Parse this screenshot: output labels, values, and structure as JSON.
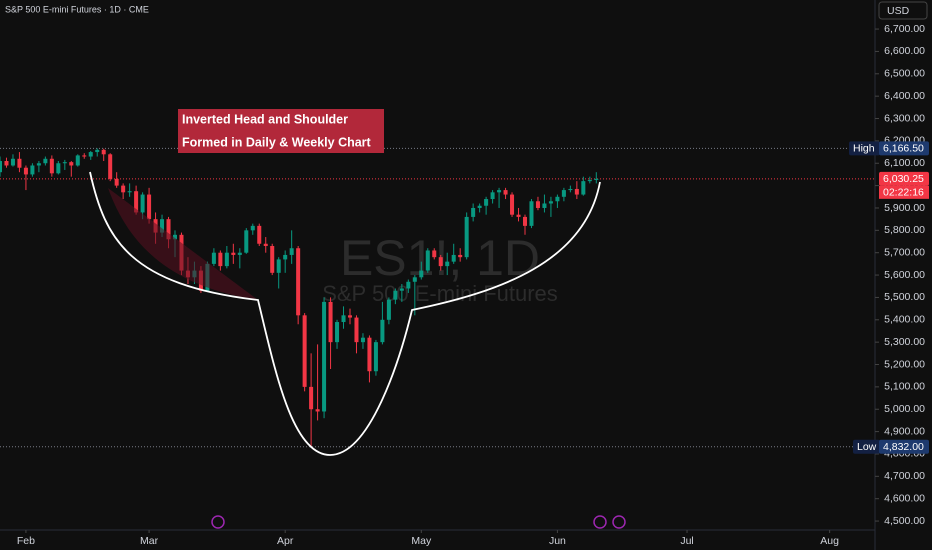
{
  "chart_data": {
    "type": "candlestick",
    "title": "S&P 500 E-mini Futures · 1D · CME",
    "watermark": "ES1!, 1D",
    "watermark_subtitle": "S&P 500 E-mini Futures",
    "currency": "USD",
    "annotation": [
      "Inverted Head and Shoulder",
      "Formed in Daily & Weekly Chart"
    ],
    "up_color": "#089981",
    "down_color": "#f23645",
    "grid": false,
    "xlim": [
      0,
      135
    ],
    "xticks": [
      {
        "value": 4,
        "label": "Feb"
      },
      {
        "value": 23,
        "label": "Mar"
      },
      {
        "value": 44,
        "label": "Apr"
      },
      {
        "value": 65,
        "label": "May"
      },
      {
        "value": 86,
        "label": "Jun"
      },
      {
        "value": 106,
        "label": "Jul"
      },
      {
        "value": 128,
        "label": "Aug"
      }
    ],
    "ylim": [
      4460,
      6830
    ],
    "yticks": [
      {
        "value": 4500,
        "label": "4,500.00"
      },
      {
        "value": 4600,
        "label": "4,600.00"
      },
      {
        "value": 4700,
        "label": "4,700.00"
      },
      {
        "value": 4800,
        "label": "4,800.00"
      },
      {
        "value": 4900,
        "label": "4,900.00"
      },
      {
        "value": 5000,
        "label": "5,000.00"
      },
      {
        "value": 5100,
        "label": "5,100.00"
      },
      {
        "value": 5200,
        "label": "5,200.00"
      },
      {
        "value": 5300,
        "label": "5,300.00"
      },
      {
        "value": 5400,
        "label": "5,400.00"
      },
      {
        "value": 5500,
        "label": "5,500.00"
      },
      {
        "value": 5600,
        "label": "5,600.00"
      },
      {
        "value": 5700,
        "label": "5,700.00"
      },
      {
        "value": 5800,
        "label": "5,800.00"
      },
      {
        "value": 5900,
        "label": "5,900.00"
      },
      {
        "value": 6000,
        "label": "6,000.00"
      },
      {
        "value": 6100,
        "label": "6,100.00"
      },
      {
        "value": 6200,
        "label": "6,200.00"
      },
      {
        "value": 6300,
        "label": "6,300.00"
      },
      {
        "value": 6400,
        "label": "6,400.00"
      },
      {
        "value": 6500,
        "label": "6,500.00"
      },
      {
        "value": 6600,
        "label": "6,600.00"
      },
      {
        "value": 6700,
        "label": "6,700.00"
      }
    ],
    "high": {
      "label": "High",
      "value": 6166.5,
      "value_label": "6,166.50"
    },
    "low": {
      "label": "Low",
      "value": 4832,
      "value_label": "4,832.00"
    },
    "last": {
      "value": 6030.25,
      "value_label": "6,030.25",
      "countdown": "02:22:16"
    },
    "series": [
      {
        "open": [
          6060,
          6110,
          6090,
          6120,
          6080,
          6050,
          6090,
          6100,
          6120,
          6055,
          6100,
          6105,
          6090,
          6135,
          6130,
          6150,
          6160,
          6140,
          6030,
          6000,
          5970,
          5975,
          5880,
          5960,
          5850,
          5790,
          5850,
          5760,
          5780,
          5620,
          5590,
          5620,
          5530,
          5650,
          5700,
          5640,
          5700,
          5690,
          5700,
          5800,
          5820,
          5740,
          5730,
          5610,
          5670,
          5690,
          5720,
          5420,
          5100,
          5000,
          4990,
          5480,
          5300,
          5390,
          5420,
          5410,
          5300,
          5320,
          5170,
          5300,
          5400,
          5490,
          5530,
          5540,
          5570,
          5590,
          5620,
          5710,
          5680,
          5640,
          5660,
          5690,
          5680,
          5860,
          5900,
          5910,
          5940,
          5970,
          5980,
          5960,
          5870,
          5860,
          5820,
          5930,
          5900,
          5920,
          5930,
          5950,
          5980,
          5985,
          5960,
          6020,
          6025
        ],
        "high": [
          6130,
          6125,
          6140,
          6150,
          6090,
          6100,
          6110,
          6130,
          6135,
          6110,
          6115,
          6110,
          6140,
          6145,
          6155,
          6166.5,
          6165,
          6145,
          6060,
          6010,
          6010,
          6000,
          5970,
          5990,
          5880,
          5870,
          5860,
          5800,
          5790,
          5680,
          5660,
          5640,
          5660,
          5720,
          5710,
          5730,
          5740,
          5720,
          5810,
          5830,
          5830,
          5770,
          5740,
          5680,
          5710,
          5800,
          5730,
          5430,
          5250,
          5290,
          5500,
          5500,
          5400,
          5460,
          5450,
          5420,
          5340,
          5330,
          5310,
          5480,
          5500,
          5540,
          5560,
          5580,
          5600,
          5660,
          5720,
          5720,
          5690,
          5700,
          5740,
          5720,
          5880,
          5920,
          5920,
          5950,
          5980,
          5990,
          5990,
          5970,
          5900,
          5870,
          5940,
          5950,
          5960,
          5950,
          5960,
          5990,
          6000,
          6020,
          6040,
          6040,
          6060
        ],
        "low": [
          6040,
          6080,
          6085,
          6060,
          5980,
          6040,
          6060,
          6090,
          6040,
          6050,
          6070,
          6040,
          6085,
          6120,
          6115,
          6130,
          6110,
          6020,
          5990,
          5940,
          5950,
          5870,
          5850,
          5830,
          5740,
          5770,
          5720,
          5680,
          5600,
          5560,
          5560,
          5520,
          5525,
          5640,
          5620,
          5630,
          5650,
          5630,
          5695,
          5780,
          5730,
          5700,
          5600,
          5540,
          5610,
          5650,
          5380,
          5080,
          4832,
          4950,
          4960,
          5180,
          5270,
          5360,
          5380,
          5250,
          5270,
          5120,
          5150,
          5290,
          5380,
          5470,
          5480,
          5520,
          5420,
          5580,
          5610,
          5670,
          5620,
          5600,
          5650,
          5660,
          5670,
          5840,
          5880,
          5870,
          5920,
          5900,
          5940,
          5860,
          5840,
          5780,
          5810,
          5890,
          5880,
          5860,
          5900,
          5930,
          5970,
          5940,
          5955,
          6010,
          6010
        ],
        "close": [
          6110,
          6090,
          6120,
          6080,
          6050,
          6090,
          6100,
          6120,
          6055,
          6100,
          6105,
          6090,
          6135,
          6130,
          6150,
          6160,
          6140,
          6030,
          6000,
          5970,
          5975,
          5880,
          5960,
          5850,
          5790,
          5850,
          5760,
          5780,
          5620,
          5590,
          5620,
          5530,
          5650,
          5700,
          5640,
          5700,
          5690,
          5700,
          5800,
          5820,
          5740,
          5730,
          5610,
          5670,
          5690,
          5720,
          5420,
          5100,
          5000,
          4990,
          5480,
          5300,
          5390,
          5420,
          5410,
          5300,
          5320,
          5170,
          5300,
          5400,
          5490,
          5530,
          5540,
          5570,
          5590,
          5620,
          5710,
          5680,
          5640,
          5660,
          5690,
          5680,
          5860,
          5900,
          5910,
          5940,
          5970,
          5980,
          5960,
          5870,
          5860,
          5820,
          5930,
          5900,
          5920,
          5930,
          5950,
          5980,
          5985,
          5960,
          6020,
          6025,
          6030.25
        ]
      }
    ]
  }
}
